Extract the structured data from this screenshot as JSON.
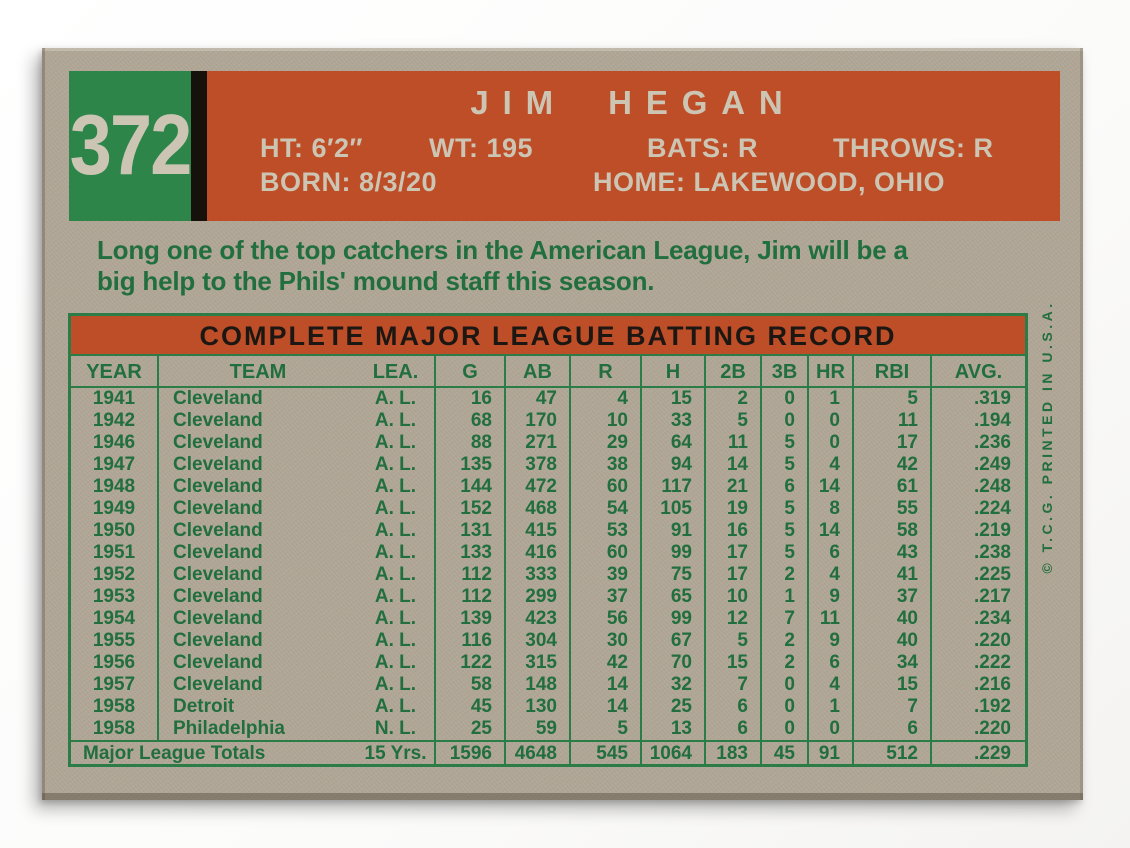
{
  "card": {
    "colors": {
      "card_stock": "#b1a797",
      "number_box_green": "#2d8549",
      "banner_orange": "#bd4e28",
      "ink_green": "#216e3e",
      "divider_black": "#17110c",
      "print_cream": "#cdc5b3"
    },
    "header": {
      "number": "372",
      "name": "JIM HEGAN",
      "vitals": {
        "ht": "HT: 6′2″",
        "wt": "WT: 195",
        "bats": "BATS: R",
        "throws": "THROWS: R",
        "born": "BORN: 8/3/20",
        "home": "HOME: LAKEWOOD, OHIO"
      }
    },
    "bio": {
      "line1": "Long one of the top catchers in the American League, Jim will be a",
      "line2": "big help to the Phils' mound staff this season."
    },
    "table": {
      "title": "COMPLETE MAJOR LEAGUE BATTING RECORD",
      "columns": [
        "YEAR",
        "TEAM",
        "LEA.",
        "G",
        "AB",
        "R",
        "H",
        "2B",
        "3B",
        "HR",
        "RBI",
        "AVG."
      ],
      "rows": [
        [
          "1941",
          "Cleveland",
          "A. L.",
          "16",
          "47",
          "4",
          "15",
          "2",
          "0",
          "1",
          "5",
          ".319"
        ],
        [
          "1942",
          "Cleveland",
          "A. L.",
          "68",
          "170",
          "10",
          "33",
          "5",
          "0",
          "0",
          "11",
          ".194"
        ],
        [
          "1946",
          "Cleveland",
          "A. L.",
          "88",
          "271",
          "29",
          "64",
          "11",
          "5",
          "0",
          "17",
          ".236"
        ],
        [
          "1947",
          "Cleveland",
          "A. L.",
          "135",
          "378",
          "38",
          "94",
          "14",
          "5",
          "4",
          "42",
          ".249"
        ],
        [
          "1948",
          "Cleveland",
          "A. L.",
          "144",
          "472",
          "60",
          "117",
          "21",
          "6",
          "14",
          "61",
          ".248"
        ],
        [
          "1949",
          "Cleveland",
          "A. L.",
          "152",
          "468",
          "54",
          "105",
          "19",
          "5",
          "8",
          "55",
          ".224"
        ],
        [
          "1950",
          "Cleveland",
          "A. L.",
          "131",
          "415",
          "53",
          "91",
          "16",
          "5",
          "14",
          "58",
          ".219"
        ],
        [
          "1951",
          "Cleveland",
          "A. L.",
          "133",
          "416",
          "60",
          "99",
          "17",
          "5",
          "6",
          "43",
          ".238"
        ],
        [
          "1952",
          "Cleveland",
          "A. L.",
          "112",
          "333",
          "39",
          "75",
          "17",
          "2",
          "4",
          "41",
          ".225"
        ],
        [
          "1953",
          "Cleveland",
          "A. L.",
          "112",
          "299",
          "37",
          "65",
          "10",
          "1",
          "9",
          "37",
          ".217"
        ],
        [
          "1954",
          "Cleveland",
          "A. L.",
          "139",
          "423",
          "56",
          "99",
          "12",
          "7",
          "11",
          "40",
          ".234"
        ],
        [
          "1955",
          "Cleveland",
          "A. L.",
          "116",
          "304",
          "30",
          "67",
          "5",
          "2",
          "9",
          "40",
          ".220"
        ],
        [
          "1956",
          "Cleveland",
          "A. L.",
          "122",
          "315",
          "42",
          "70",
          "15",
          "2",
          "6",
          "34",
          ".222"
        ],
        [
          "1957",
          "Cleveland",
          "A. L.",
          "58",
          "148",
          "14",
          "32",
          "7",
          "0",
          "4",
          "15",
          ".216"
        ],
        [
          "1958",
          "Detroit",
          "A. L.",
          "45",
          "130",
          "14",
          "25",
          "6",
          "0",
          "1",
          "7",
          ".192"
        ],
        [
          "1958",
          "Philadelphia",
          "N. L.",
          "25",
          "59",
          "5",
          "13",
          "6",
          "0",
          "0",
          "6",
          ".220"
        ]
      ],
      "totals": [
        "Major League Totals",
        "15 Yrs.",
        "1596",
        "4648",
        "545",
        "1064",
        "183",
        "45",
        "91",
        "512",
        ".229"
      ]
    },
    "copyright": "© T.C.G. PRINTED IN U.S.A."
  }
}
